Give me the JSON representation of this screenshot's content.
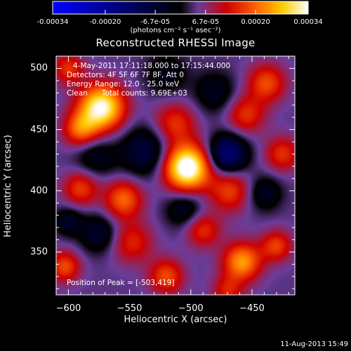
{
  "colorbar": {
    "ticks": [
      "-0.00034",
      "-0.00020",
      "-6.7e-05",
      "6.7e-05",
      "0.00020",
      "0.00034"
    ],
    "units": "(photons cm⁻² s⁻¹ asec⁻²)"
  },
  "info": {
    "time_range": "4-May-2011 17:11:18.000 to 17:15:44.000",
    "detectors": "Detectors: 4F 5F 6F 7F 8F, Att 0",
    "energy": "Energy Range: 12.0 - 25.0 keV",
    "algorithm": "Clean      Total counts: 9.69E+03",
    "peak": "Position of Peak = [-503,419]"
  },
  "timestamp": "11-Aug-2013 15:49",
  "chart_data": {
    "type": "heatmap",
    "title": "Reconstructed RHESSI Image",
    "xlabel": "Heliocentric X (arcsec)",
    "ylabel": "Heliocentric Y (arcsec)",
    "xlim": [
      -610,
      -415
    ],
    "ylim": [
      315,
      510
    ],
    "xticks": [
      -600,
      -550,
      -500,
      -450
    ],
    "yticks": [
      350,
      400,
      450,
      500
    ],
    "value_range": [
      -0.00034,
      0.00034
    ],
    "colormap": [
      "#0000ff",
      "#000000",
      "#6a3d9a",
      "#cc0000",
      "#ff6600",
      "#ffcc00",
      "#ffffff"
    ],
    "peak_position": [
      -503,
      419
    ],
    "sources": [
      {
        "x": -503,
        "y": 419,
        "amplitude": 0.00034,
        "sigma": 13
      },
      {
        "x": -573,
        "y": 468,
        "amplitude": 0.0003,
        "sigma": 13
      },
      {
        "x": -590,
        "y": 450,
        "amplitude": 0.00016,
        "sigma": 10
      },
      {
        "x": -513,
        "y": 455,
        "amplitude": 0.00012,
        "sigma": 12
      },
      {
        "x": -455,
        "y": 462,
        "amplitude": 0.00012,
        "sigma": 11
      },
      {
        "x": -438,
        "y": 488,
        "amplitude": 0.00014,
        "sigma": 11
      },
      {
        "x": -425,
        "y": 430,
        "amplitude": 0.00012,
        "sigma": 10
      },
      {
        "x": -468,
        "y": 400,
        "amplitude": 0.00013,
        "sigma": 12
      },
      {
        "x": -555,
        "y": 393,
        "amplitude": 0.00016,
        "sigma": 11
      },
      {
        "x": -590,
        "y": 402,
        "amplitude": 0.00013,
        "sigma": 10
      },
      {
        "x": -548,
        "y": 358,
        "amplitude": 0.00011,
        "sigma": 12
      },
      {
        "x": -603,
        "y": 338,
        "amplitude": 0.00014,
        "sigma": 9
      },
      {
        "x": -520,
        "y": 330,
        "amplitude": 0.00014,
        "sigma": 10
      },
      {
        "x": -490,
        "y": 368,
        "amplitude": 0.00012,
        "sigma": 10
      },
      {
        "x": -458,
        "y": 342,
        "amplitude": 0.0002,
        "sigma": 11
      },
      {
        "x": -430,
        "y": 355,
        "amplitude": 0.00013,
        "sigma": 9
      },
      {
        "x": -600,
        "y": 500,
        "amplitude": 0.00012,
        "sigma": 9
      },
      {
        "x": -470,
        "y": 318,
        "amplitude": 0.0001,
        "sigma": 9
      },
      {
        "x": -537,
        "y": 432,
        "amplitude": -0.00012,
        "sigma": 14
      },
      {
        "x": -470,
        "y": 430,
        "amplitude": -0.0002,
        "sigma": 11
      },
      {
        "x": -578,
        "y": 428,
        "amplitude": -8e-05,
        "sigma": 12
      },
      {
        "x": -480,
        "y": 480,
        "amplitude": -8e-05,
        "sigma": 12
      },
      {
        "x": -575,
        "y": 365,
        "amplitude": -0.0001,
        "sigma": 11
      },
      {
        "x": -505,
        "y": 385,
        "amplitude": -9e-05,
        "sigma": 11
      },
      {
        "x": -440,
        "y": 398,
        "amplitude": -9e-05,
        "sigma": 10
      },
      {
        "x": -520,
        "y": 495,
        "amplitude": -7e-05,
        "sigma": 12
      },
      {
        "x": -600,
        "y": 375,
        "amplitude": -9e-05,
        "sigma": 8
      }
    ]
  }
}
